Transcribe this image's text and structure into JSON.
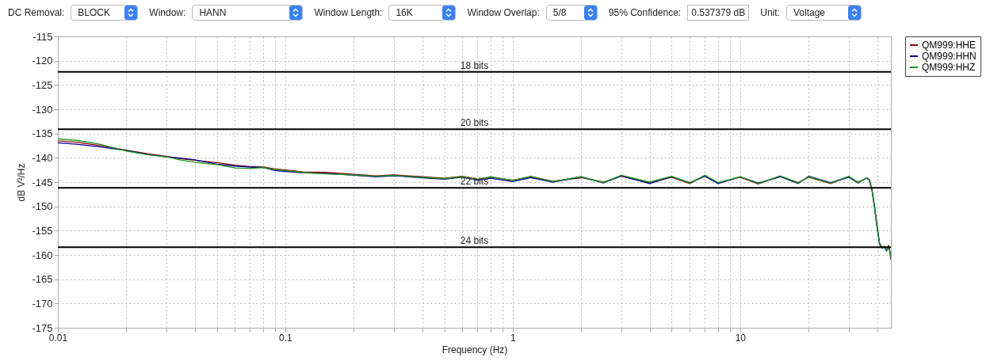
{
  "chart_data": {
    "type": "line",
    "xlabel": "Frequency (Hz)",
    "ylabel": "dB V²/Hz",
    "annotations": [
      "DC Removal:",
      "BLOCK",
      "Window:",
      "HANN",
      "Window Length:",
      "16K",
      "Window Overlap:",
      "5/8",
      "95% Confidence:",
      "0.537379 dB",
      "Unit:",
      "Voltage"
    ],
    "x": [
      0.01,
      0.012,
      0.015,
      0.02,
      0.025,
      0.03,
      0.035,
      0.04,
      0.05,
      0.06,
      0.07,
      0.08,
      0.09,
      0.1,
      0.12,
      0.15,
      0.2,
      0.25,
      0.3,
      0.4,
      0.5,
      0.6,
      0.7,
      0.8,
      1,
      1.2,
      1.5,
      2,
      2.5,
      3,
      4,
      5,
      6,
      7,
      8,
      10,
      12,
      15,
      18,
      20,
      25,
      30,
      33,
      36,
      37,
      38,
      39,
      40,
      41,
      42,
      43,
      44,
      45,
      46
    ],
    "series": [
      {
        "name": "QM999:HHE",
        "color": "#9b0000",
        "values": [
          -136.5,
          -136.8,
          -137.4,
          -138.4,
          -139.2,
          -139.7,
          -140.2,
          -140.5,
          -141.0,
          -141.5,
          -141.8,
          -141.9,
          -142.3,
          -142.5,
          -142.9,
          -143.0,
          -143.4,
          -143.7,
          -143.5,
          -143.9,
          -144.2,
          -143.8,
          -144.4,
          -144.0,
          -144.6,
          -143.9,
          -144.8,
          -144.1,
          -145.0,
          -143.8,
          -145.2,
          -144.0,
          -145.3,
          -143.7,
          -145.2,
          -144.0,
          -145.4,
          -143.8,
          -145.1,
          -144.0,
          -145.3,
          -143.9,
          -145.0,
          -144.2,
          -144.5,
          -146.5,
          -150.0,
          -154.0,
          -157.5,
          -158.5,
          -158.2,
          -159.0,
          -158.0,
          -161.0
        ]
      },
      {
        "name": "QM999:HHN",
        "color": "#0000a0",
        "values": [
          -136.9,
          -137.2,
          -137.7,
          -138.5,
          -139.3,
          -139.8,
          -140.1,
          -140.4,
          -141.3,
          -141.7,
          -141.9,
          -142.0,
          -142.6,
          -142.8,
          -143.1,
          -143.2,
          -143.6,
          -143.9,
          -143.7,
          -144.1,
          -144.4,
          -144.0,
          -144.6,
          -144.2,
          -144.9,
          -144.1,
          -145.0,
          -143.9,
          -145.2,
          -143.7,
          -145.3,
          -143.9,
          -145.1,
          -143.8,
          -145.3,
          -143.9,
          -145.2,
          -143.9,
          -145.3,
          -143.8,
          -145.1,
          -144.0,
          -145.2,
          -144.1,
          -144.7,
          -146.8,
          -150.5,
          -154.5,
          -157.8,
          -158.6,
          -158.4,
          -159.2,
          -158.3,
          -160.0
        ]
      },
      {
        "name": "QM999:HHZ",
        "color": "#1a9a1a",
        "values": [
          -136.1,
          -136.4,
          -137.1,
          -138.6,
          -139.4,
          -139.8,
          -140.5,
          -140.9,
          -141.4,
          -142.1,
          -142.2,
          -142.0,
          -142.4,
          -142.6,
          -143.0,
          -143.3,
          -143.5,
          -143.8,
          -143.6,
          -144.0,
          -144.3,
          -143.9,
          -144.5,
          -143.9,
          -144.7,
          -143.8,
          -144.9,
          -143.9,
          -145.1,
          -143.6,
          -145.0,
          -143.8,
          -145.2,
          -143.6,
          -145.1,
          -143.9,
          -145.3,
          -143.7,
          -145.2,
          -143.9,
          -145.2,
          -143.8,
          -145.1,
          -144.1,
          -144.6,
          -146.6,
          -150.2,
          -154.2,
          -157.6,
          -158.4,
          -158.3,
          -159.1,
          -158.1,
          -160.5
        ]
      }
    ],
    "xlim": [
      0.01,
      46
    ],
    "ylim": [
      -175,
      -115
    ],
    "xticks": [
      0.01,
      {
        "value": 0.02,
        "label": null
      },
      {
        "value": 0.03,
        "label": null
      },
      {
        "value": 0.04,
        "label": null
      },
      {
        "value": 0.05,
        "label": null
      },
      {
        "value": 0.06,
        "label": null
      },
      {
        "value": 0.07,
        "label": null
      },
      {
        "value": 0.08,
        "label": null
      },
      {
        "value": 0.09,
        "label": null
      },
      0.1,
      {
        "value": 0.2,
        "label": null
      },
      {
        "value": 0.3,
        "label": null
      },
      {
        "value": 0.4,
        "label": null
      },
      {
        "value": 0.5,
        "label": null
      },
      {
        "value": 0.6,
        "label": null
      },
      {
        "value": 0.7,
        "label": null
      },
      {
        "value": 0.8,
        "label": null
      },
      {
        "value": 0.9,
        "label": null
      },
      1,
      {
        "value": 2,
        "label": null
      },
      {
        "value": 3,
        "label": null
      },
      {
        "value": 4,
        "label": null
      },
      {
        "value": 5,
        "label": null
      },
      {
        "value": 6,
        "label": null
      },
      {
        "value": 7,
        "label": null
      },
      {
        "value": 8,
        "label": null
      },
      {
        "value": 9,
        "label": null
      },
      10,
      {
        "value": 20,
        "label": null
      },
      {
        "value": 30,
        "label": null
      },
      {
        "value": 40,
        "label": null
      }
    ],
    "yticks": [
      -175,
      -170,
      -165,
      -160,
      -155,
      -150,
      -145,
      -140,
      -135,
      -130,
      -125,
      -120,
      -115
    ],
    "log": "x",
    "grid": true,
    "legend": "right",
    "ref_lines": [
      {
        "axis": "y",
        "value": -122.3,
        "label": "18 bits",
        "color": "#000000"
      },
      {
        "axis": "y",
        "value": -134.1,
        "label": "20 bits",
        "color": "#000000"
      },
      {
        "axis": "y",
        "value": -146.2,
        "label": "22 bits",
        "color": "#000000"
      },
      {
        "axis": "y",
        "value": -158.4,
        "label": "24 bits",
        "color": "#000000"
      }
    ]
  }
}
